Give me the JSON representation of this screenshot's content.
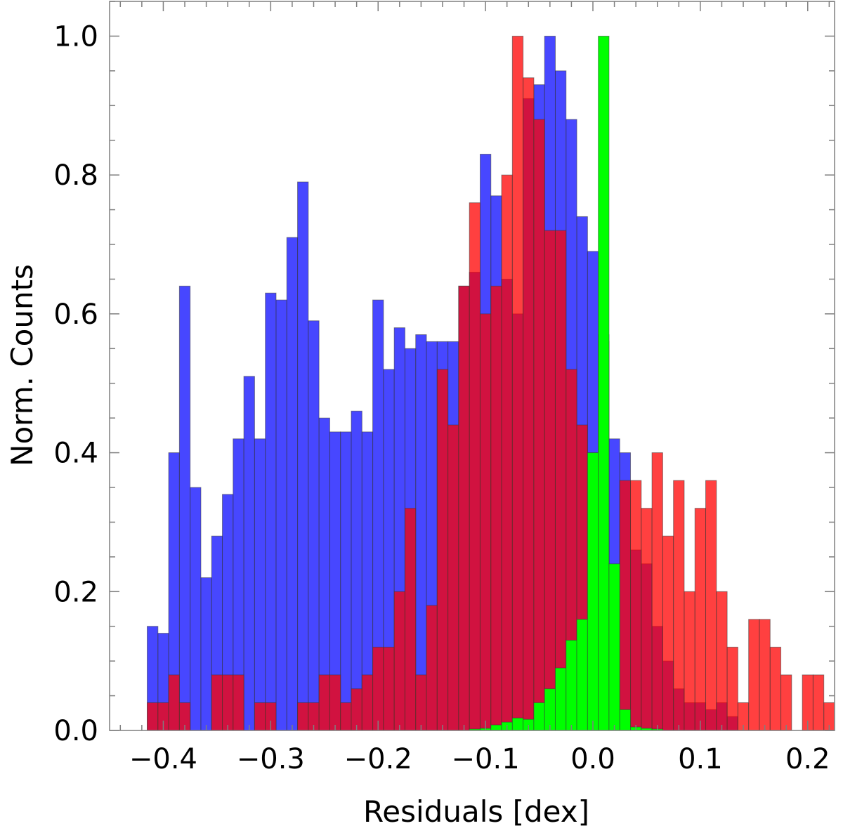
{
  "chart_data": {
    "type": "bar",
    "xlabel": "Residuals [dex]",
    "ylabel": "Norm. Counts",
    "xlim": [
      -0.45,
      0.225
    ],
    "ylim": [
      0.0,
      1.05
    ],
    "bin_width": 0.01,
    "x_ticks": [
      -0.4,
      -0.3,
      -0.2,
      -0.1,
      0.0,
      0.1,
      0.2
    ],
    "x_tick_labels": [
      "−0.4",
      "−0.3",
      "−0.2",
      "−0.1",
      "0.0",
      "0.1",
      "0.2"
    ],
    "y_ticks": [
      0.0,
      0.2,
      0.4,
      0.6,
      0.8,
      1.0
    ],
    "y_tick_labels": [
      "0.0",
      "0.2",
      "0.4",
      "0.6",
      "0.8",
      "1.0"
    ],
    "grid": false,
    "colors": {
      "blue": "#0000ff",
      "red": "#ff0000",
      "green": "#00ff00"
    },
    "series": [
      {
        "color": "blue",
        "bin_start": -0.415,
        "values": [
          0.15,
          0.14,
          0.4,
          0.64,
          0.35,
          0.22,
          0.28,
          0.34,
          0.42,
          0.51,
          0.42,
          0.63,
          0.62,
          0.71,
          0.79,
          0.59,
          0.45,
          0.43,
          0.43,
          0.46,
          0.43,
          0.62,
          0.52,
          0.58,
          0.55,
          0.57,
          0.56,
          0.56,
          0.56,
          0.64,
          0.66,
          0.83,
          0.77,
          0.65,
          0.6,
          0.91,
          0.93,
          1.0,
          0.95,
          0.88,
          0.74,
          0.69,
          0.57,
          0.42,
          0.4,
          0.26,
          0.24,
          0.15,
          0.1,
          0.06,
          0.04,
          0.04,
          0.03,
          0.04,
          0.02
        ]
      },
      {
        "color": "red",
        "bin_start": -0.415,
        "values": [
          0.04,
          0.04,
          0.08,
          0.04,
          0.0,
          0.0,
          0.08,
          0.08,
          0.08,
          0.0,
          0.04,
          0.04,
          0.0,
          0.0,
          0.04,
          0.04,
          0.08,
          0.08,
          0.04,
          0.06,
          0.08,
          0.12,
          0.12,
          0.2,
          0.32,
          0.08,
          0.18,
          0.52,
          0.44,
          0.64,
          0.76,
          0.6,
          0.64,
          0.8,
          1.0,
          0.94,
          0.88,
          0.72,
          0.72,
          0.52,
          0.44,
          0.4,
          0.56,
          0.2,
          0.36,
          0.36,
          0.32,
          0.4,
          0.28,
          0.36,
          0.2,
          0.32,
          0.36,
          0.2,
          0.12,
          0.04,
          0.16,
          0.16,
          0.12,
          0.08,
          0.0,
          0.08,
          0.08,
          0.04,
          0.0,
          0.04
        ]
      },
      {
        "color": "green",
        "bin_start": -0.115,
        "values": [
          0.002,
          0.003,
          0.008,
          0.012,
          0.018,
          0.016,
          0.04,
          0.06,
          0.09,
          0.13,
          0.16,
          0.4,
          1.0,
          0.24,
          0.03,
          0.005,
          0.003,
          0.002
        ]
      }
    ]
  }
}
